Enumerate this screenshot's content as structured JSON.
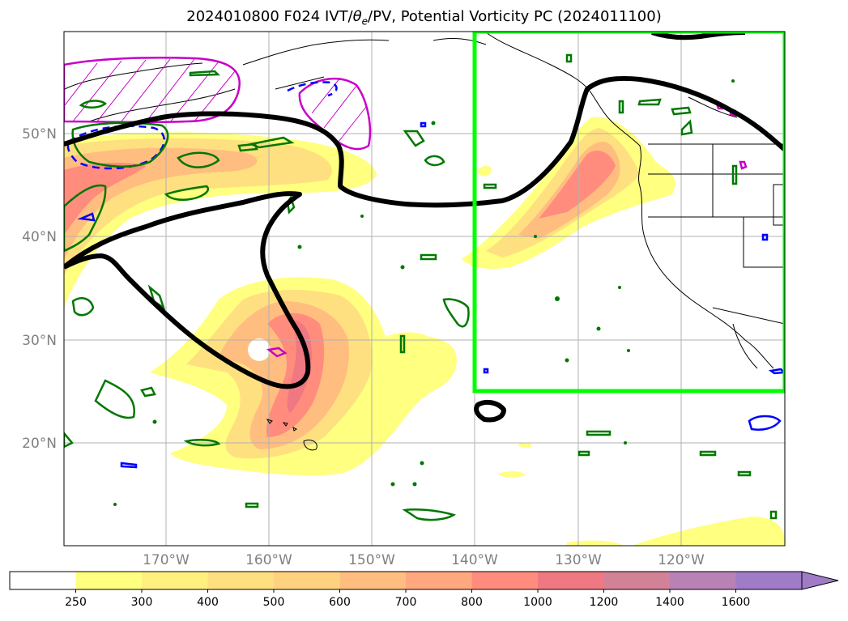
{
  "title": {
    "prefix": "2024010800 F024 IVT/",
    "theta": "θ",
    "theta_sub": "e",
    "suffix": "/PV, Potential Vorticity PC (2024011100)"
  },
  "lat_labels": [
    "50°N",
    "40°N",
    "30°N",
    "20°N"
  ],
  "lon_labels": [
    "170°W",
    "160°W",
    "150°W",
    "140°W",
    "130°W",
    "120°W"
  ],
  "colorbar": {
    "ticks": [
      "250",
      "300",
      "400",
      "500",
      "600",
      "700",
      "800",
      "1000",
      "1200",
      "1400",
      "1600"
    ],
    "colors": [
      "#ffffff",
      "#ffff80",
      "#fff080",
      "#ffe080",
      "#ffd280",
      "#ffbe80",
      "#ffa880",
      "#ff8c7c",
      "#f07882",
      "#d28296",
      "#b882b4",
      "#a07cc8"
    ]
  },
  "colors": {
    "pv_contour": "#000000",
    "box": "#00ff00",
    "green_contour": "#007800",
    "blue_contour": "#0000ff",
    "magenta_contour": "#c800c8"
  }
}
